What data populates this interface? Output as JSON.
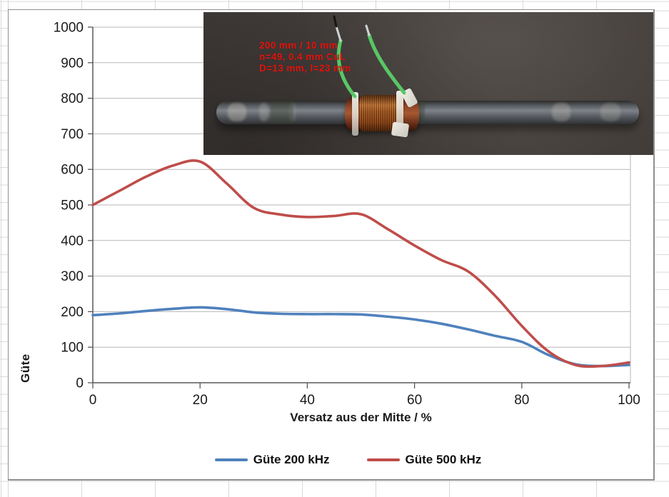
{
  "chart_data": {
    "type": "line",
    "title": "",
    "xlabel": "Versatz aus der Mitte / %",
    "ylabel": "Güte",
    "xlim": [
      0,
      100
    ],
    "ylim": [
      0,
      1000
    ],
    "xticks": [
      0,
      20,
      40,
      60,
      80,
      100
    ],
    "yticks": [
      0,
      100,
      200,
      300,
      400,
      500,
      600,
      700,
      800,
      900,
      1000
    ],
    "grid": "horizontal",
    "legend_position": "bottom",
    "x": [
      0,
      5,
      10,
      15,
      20,
      25,
      30,
      35,
      40,
      45,
      50,
      55,
      60,
      65,
      70,
      75,
      80,
      85,
      90,
      95,
      100
    ],
    "series": [
      {
        "name": "Güte 200 kHz",
        "color": "#4f81bd",
        "values": [
          190,
          195,
          202,
          208,
          212,
          207,
          198,
          194,
          193,
          193,
          192,
          186,
          178,
          166,
          150,
          132,
          115,
          78,
          52,
          47,
          50
        ]
      },
      {
        "name": "Güte 500 kHz",
        "color": "#bf4d4a",
        "values": [
          500,
          540,
          580,
          611,
          622,
          560,
          492,
          473,
          466,
          469,
          474,
          432,
          386,
          345,
          313,
          245,
          160,
          88,
          50,
          47,
          57
        ]
      }
    ]
  },
  "axes": {
    "axis_color": "#595959",
    "gridline_color": "#b7b7b7",
    "tick_label_color": "#1a1a1a"
  },
  "photo": {
    "annotation": {
      "lines": [
        "200 mm / 10 mm",
        "n=49, 0.4 mm CuL",
        "D=13 mm, l=23 mm"
      ],
      "color": "#e3140e"
    }
  }
}
